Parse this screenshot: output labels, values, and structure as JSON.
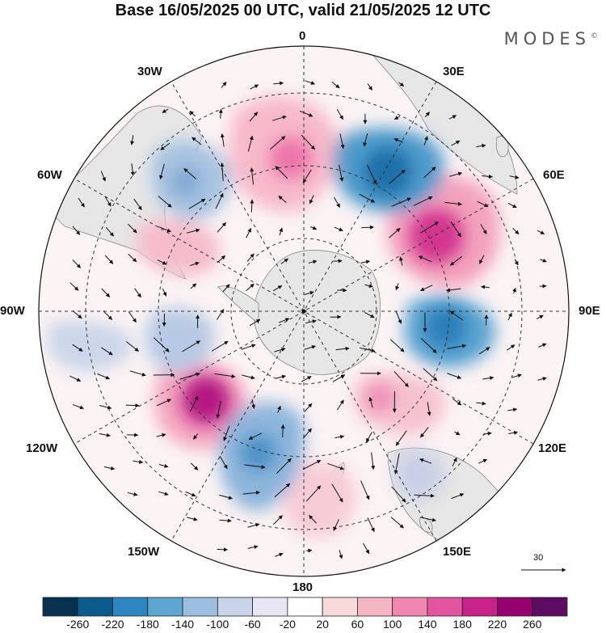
{
  "title": "Base 16/05/2025 00 UTC, valid 21/05/2025 12 UTC",
  "brand": "MODES",
  "brand_mark": "©",
  "longitude_labels": {
    "lon_0": "0",
    "lon_30e": "30E",
    "lon_60e": "60E",
    "lon_90e": "90E",
    "lon_120e": "120E",
    "lon_150e": "150E",
    "lon_180": "180",
    "lon_150w": "150W",
    "lon_120w": "120W",
    "lon_90w": "90W",
    "lon_60w": "60W",
    "lon_30w": "30W"
  },
  "reference_vector": "30",
  "colorbar": {
    "colors": [
      "#08304f",
      "#0d5a8c",
      "#2d86c0",
      "#5ea6d2",
      "#9dbfdf",
      "#c8d3e8",
      "#e8e6f3",
      "#ffffff",
      "#f8dadd",
      "#f5b5c4",
      "#ef86b0",
      "#e455a0",
      "#c8218a",
      "#97006f",
      "#5d0b63"
    ],
    "ticks": [
      "-260",
      "-220",
      "-180",
      "-140",
      "-100",
      "-60",
      "-20",
      "20",
      "60",
      "100",
      "140",
      "180",
      "220",
      "260"
    ]
  }
}
